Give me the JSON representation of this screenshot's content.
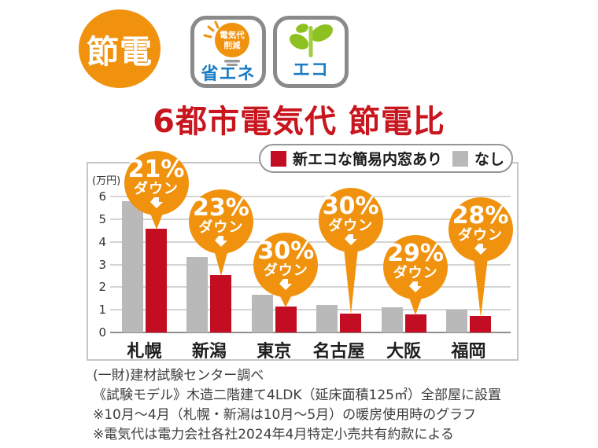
{
  "badges": {
    "setsuden": "節電",
    "energy_saving": {
      "bulb_line1": "電気代",
      "bulb_line2": "削減",
      "label": "省エネ"
    },
    "eco": {
      "label": "エコ"
    }
  },
  "title": "6都市電気代 節電比",
  "legend": {
    "series1": "新エコな簡易内窓あり",
    "series2": "なし"
  },
  "chart_data": {
    "type": "bar",
    "title": "6都市電気代 節電比",
    "unit_label": "(万円)",
    "categories": [
      "札幌",
      "新潟",
      "東京",
      "名古屋",
      "大阪",
      "福岡"
    ],
    "series": [
      {
        "name": "新エコな簡易内窓あり",
        "role": "eco",
        "color": "#c30d23",
        "values": [
          4.6,
          2.55,
          1.16,
          0.85,
          0.8,
          0.72
        ]
      },
      {
        "name": "なし",
        "role": "none",
        "color": "#b9b9b9",
        "values": [
          5.8,
          3.35,
          1.65,
          1.2,
          1.12,
          1.0
        ]
      }
    ],
    "callouts": [
      {
        "pct": "21%",
        "label": "ダウン"
      },
      {
        "pct": "23%",
        "label": "ダウン"
      },
      {
        "pct": "30%",
        "label": "ダウン"
      },
      {
        "pct": "30%",
        "label": "ダウン"
      },
      {
        "pct": "29%",
        "label": "ダウン"
      },
      {
        "pct": "28%",
        "label": "ダウン"
      }
    ],
    "ylim": [
      0,
      6
    ],
    "yticks": [
      0,
      1,
      2,
      3,
      4,
      5,
      6
    ],
    "grid": true,
    "legend_position": "top-right"
  },
  "footnotes": [
    "(一財)建材試験センター調べ",
    "《試験モデル》木造二階建て4LDK（延床面積125㎡）全部屋に設置",
    "※10月～4月（札幌・新潟は10月～5月）の暖房使用時のグラフ",
    "※電気代は電力会社各社2024年4月特定小売共有約款による"
  ],
  "colors": {
    "accent_orange": "#f0920d",
    "bar_red": "#c30d23",
    "bar_gray": "#b9b9b9",
    "title_red": "#c9151e",
    "badge_blue": "#1b7cc4",
    "leaf_green": "#8dc122"
  }
}
